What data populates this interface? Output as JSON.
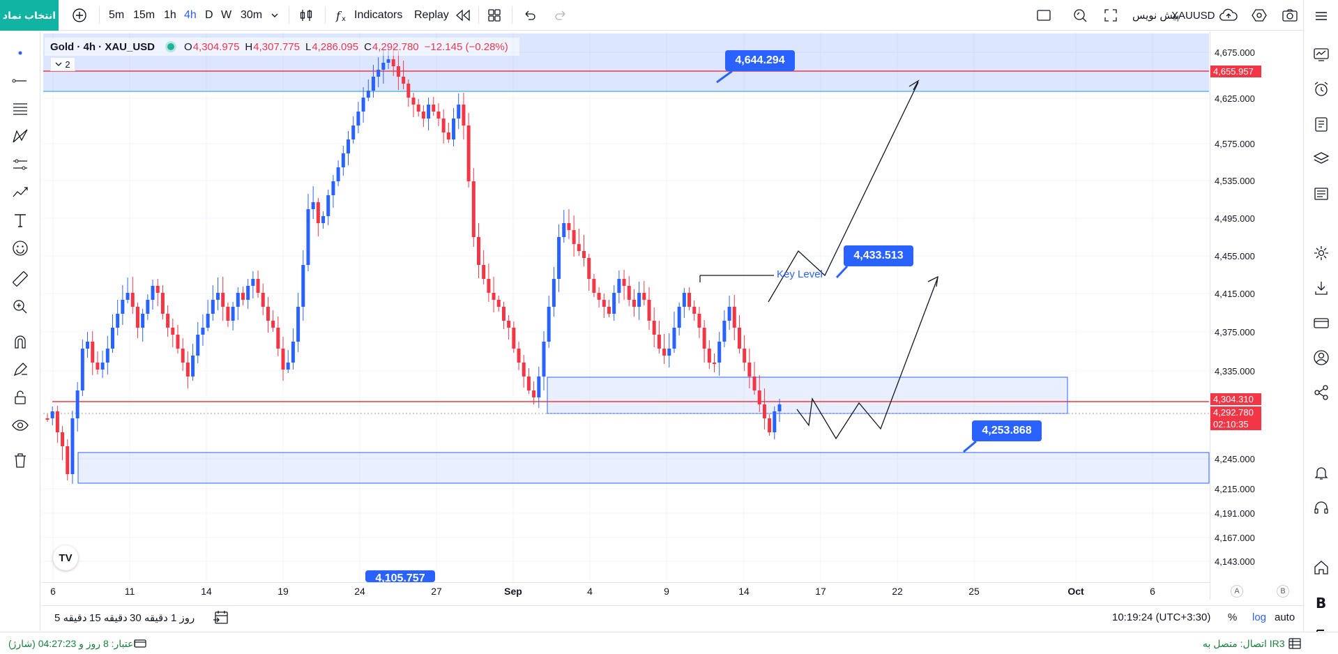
{
  "header": {
    "symbol_search_label": "انتخاب نماد",
    "intervals": [
      "5m",
      "15m",
      "1h",
      "4h",
      "D",
      "W"
    ],
    "active_interval": "4h",
    "custom_interval": "30m",
    "indicators_label": "Indicators",
    "replay_label": "Replay",
    "symbol_name": "XAUUSD",
    "chart_mode_label": "پیش نویس"
  },
  "legend": {
    "title": "Gold · 4h · XAU_USD",
    "open_key": "O",
    "open": "4,304.975",
    "high_key": "H",
    "high": "4,307.775",
    "low_key": "L",
    "low": "4,286.095",
    "close_key": "C",
    "close": "4,292.780",
    "change": "−12.145 (−0.28%)",
    "indicator_count": "2"
  },
  "price_axis": {
    "labels": [
      "4,675.000",
      "4,625.000",
      "4,575.000",
      "4,535.000",
      "4,495.000",
      "4,455.000",
      "4,415.000",
      "4,375.000",
      "4,335.000",
      "4,245.000",
      "4,215.000",
      "4,191.000",
      "4,167.000",
      "4,143.000"
    ],
    "badge_top": "4,655.957",
    "badge_level": "4,304.310",
    "badge_last": "4,292.780",
    "badge_countdown": "02:10:35"
  },
  "time_axis": {
    "labels": [
      "6",
      "11",
      "14",
      "19",
      "24",
      "27",
      "Sep",
      "4",
      "9",
      "14",
      "17",
      "22",
      "25",
      "Oct",
      "6"
    ],
    "badge_a": "A",
    "badge_b": "B"
  },
  "drawings": {
    "callout_top": "4,644.294",
    "callout_mid": "4,433.513",
    "callout_low": "4,253.868",
    "callout_bottom_cut": "4,105.757",
    "key_level_label": "Key Level"
  },
  "bottom_toolbar": {
    "ranges": [
      "5 دقیقه",
      "15 دقیقه",
      "30 دقیقه",
      "1 روز"
    ],
    "clock": "10:19:24 (UTC+3:30)",
    "percent_label": "%",
    "log_label": "log",
    "auto_label": "auto"
  },
  "status_bar": {
    "credit": "اعتبار: 8 روز و 04:27:23 (شارژ)",
    "connection": "اتصال: متصل به IR3"
  },
  "colors": {
    "accent": "#2962ff",
    "up_candle": "#2962ff",
    "down_candle": "#f23645",
    "symbol_button": "#11b3a3"
  }
}
